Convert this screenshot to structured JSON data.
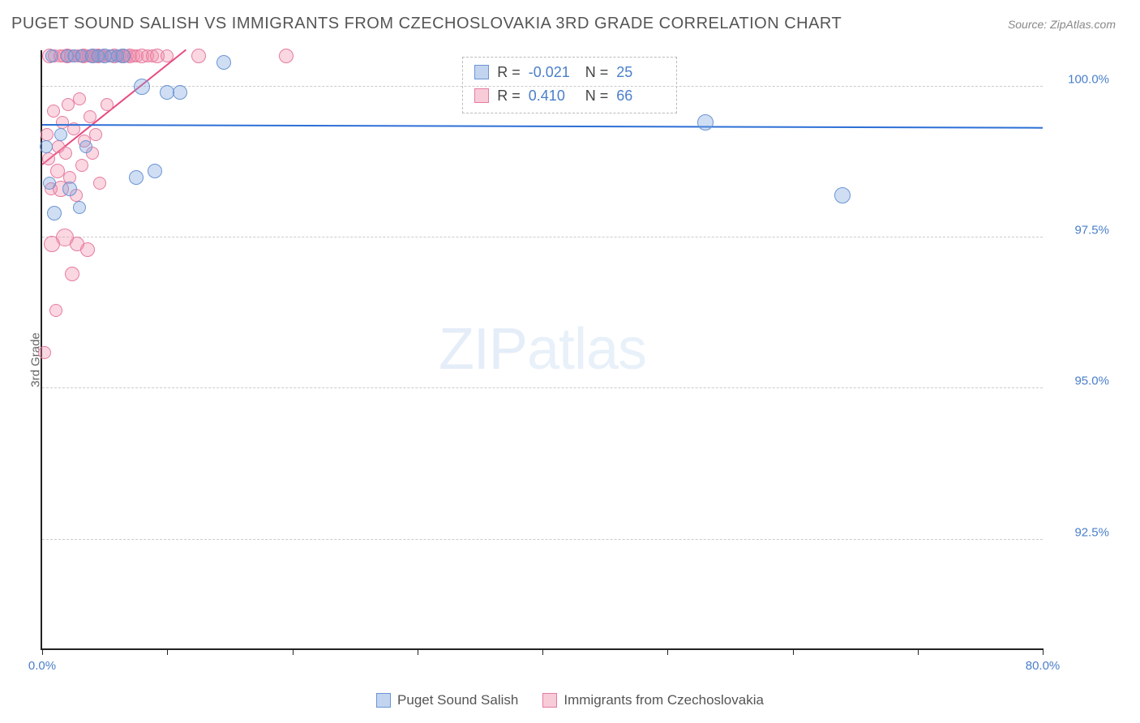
{
  "title": "PUGET SOUND SALISH VS IMMIGRANTS FROM CZECHOSLOVAKIA 3RD GRADE CORRELATION CHART",
  "source_label": "Source: ZipAtlas.com",
  "watermark": {
    "strong": "ZIP",
    "light": "atlas"
  },
  "ylabel": "3rd Grade",
  "chart": {
    "type": "scatter",
    "xlim": [
      0,
      80
    ],
    "ylim": [
      90.7,
      100.6
    ],
    "x_ticks": [
      0,
      10,
      20,
      30,
      40,
      50,
      60,
      70,
      80
    ],
    "x_tick_labels": {
      "0": "0.0%",
      "80": "80.0%"
    },
    "y_grid": [
      92.5,
      95.0,
      97.5,
      100.0
    ],
    "y_tick_labels": [
      "92.5%",
      "95.0%",
      "97.5%",
      "100.0%"
    ],
    "grid_color": "#cccccc",
    "axis_color": "#222222",
    "background": "#ffffff",
    "tick_label_color": "#4a7fc9"
  },
  "series": [
    {
      "name": "Puget Sound Salish",
      "fill": "rgba(120,160,220,0.35)",
      "stroke": "#6a95d4",
      "reg_color": "#2d6fd6",
      "R": "-0.021",
      "N": "25",
      "regression": {
        "x1": 0,
        "y1": 99.35,
        "x2": 80,
        "y2": 99.3
      },
      "points": [
        {
          "x": 0.3,
          "y": 99.0,
          "r": 8
        },
        {
          "x": 0.6,
          "y": 98.4,
          "r": 8
        },
        {
          "x": 0.8,
          "y": 100.5,
          "r": 8
        },
        {
          "x": 1.0,
          "y": 97.9,
          "r": 9
        },
        {
          "x": 1.5,
          "y": 99.2,
          "r": 8
        },
        {
          "x": 2.0,
          "y": 100.5,
          "r": 8
        },
        {
          "x": 2.2,
          "y": 98.3,
          "r": 9
        },
        {
          "x": 2.5,
          "y": 100.5,
          "r": 8
        },
        {
          "x": 3.0,
          "y": 98.0,
          "r": 8
        },
        {
          "x": 3.2,
          "y": 100.5,
          "r": 8
        },
        {
          "x": 3.5,
          "y": 99.0,
          "r": 8
        },
        {
          "x": 4.0,
          "y": 100.5,
          "r": 9
        },
        {
          "x": 4.5,
          "y": 100.5,
          "r": 8
        },
        {
          "x": 5.0,
          "y": 100.5,
          "r": 9
        },
        {
          "x": 5.5,
          "y": 100.5,
          "r": 8
        },
        {
          "x": 6.0,
          "y": 100.5,
          "r": 8
        },
        {
          "x": 6.5,
          "y": 100.5,
          "r": 9
        },
        {
          "x": 7.5,
          "y": 98.5,
          "r": 9
        },
        {
          "x": 8.0,
          "y": 100.0,
          "r": 10
        },
        {
          "x": 9.0,
          "y": 98.6,
          "r": 9
        },
        {
          "x": 10.0,
          "y": 99.9,
          "r": 9
        },
        {
          "x": 11.0,
          "y": 99.9,
          "r": 9
        },
        {
          "x": 14.5,
          "y": 100.4,
          "r": 9
        },
        {
          "x": 53.0,
          "y": 99.4,
          "r": 10
        },
        {
          "x": 64.0,
          "y": 98.2,
          "r": 10
        }
      ]
    },
    {
      "name": "Immigrants from Czechoslovakia",
      "fill": "rgba(240,140,170,0.35)",
      "stroke": "#e67ba0",
      "reg_color": "#e84a7f",
      "R": "0.410",
      "N": "66",
      "regression": {
        "x1": 0,
        "y1": 98.7,
        "x2": 11.5,
        "y2": 100.6
      },
      "points": [
        {
          "x": 0.2,
          "y": 95.6,
          "r": 8
        },
        {
          "x": 0.4,
          "y": 99.2,
          "r": 8
        },
        {
          "x": 0.5,
          "y": 98.8,
          "r": 8
        },
        {
          "x": 0.6,
          "y": 100.5,
          "r": 9
        },
        {
          "x": 0.7,
          "y": 98.3,
          "r": 8
        },
        {
          "x": 0.8,
          "y": 97.4,
          "r": 10
        },
        {
          "x": 0.9,
          "y": 99.6,
          "r": 8
        },
        {
          "x": 1.0,
          "y": 100.5,
          "r": 8
        },
        {
          "x": 1.1,
          "y": 96.3,
          "r": 8
        },
        {
          "x": 1.2,
          "y": 98.6,
          "r": 9
        },
        {
          "x": 1.3,
          "y": 99.0,
          "r": 8
        },
        {
          "x": 1.4,
          "y": 100.5,
          "r": 8
        },
        {
          "x": 1.5,
          "y": 98.3,
          "r": 10
        },
        {
          "x": 1.6,
          "y": 99.4,
          "r": 8
        },
        {
          "x": 1.7,
          "y": 100.5,
          "r": 8
        },
        {
          "x": 1.8,
          "y": 97.5,
          "r": 11
        },
        {
          "x": 1.9,
          "y": 98.9,
          "r": 8
        },
        {
          "x": 2.0,
          "y": 100.5,
          "r": 9
        },
        {
          "x": 2.1,
          "y": 99.7,
          "r": 8
        },
        {
          "x": 2.2,
          "y": 98.5,
          "r": 8
        },
        {
          "x": 2.3,
          "y": 100.5,
          "r": 8
        },
        {
          "x": 2.4,
          "y": 96.9,
          "r": 9
        },
        {
          "x": 2.5,
          "y": 99.3,
          "r": 8
        },
        {
          "x": 2.6,
          "y": 100.5,
          "r": 8
        },
        {
          "x": 2.7,
          "y": 98.2,
          "r": 8
        },
        {
          "x": 2.8,
          "y": 97.4,
          "r": 9
        },
        {
          "x": 2.9,
          "y": 100.5,
          "r": 8
        },
        {
          "x": 3.0,
          "y": 99.8,
          "r": 8
        },
        {
          "x": 3.1,
          "y": 100.5,
          "r": 8
        },
        {
          "x": 3.2,
          "y": 98.7,
          "r": 8
        },
        {
          "x": 3.3,
          "y": 100.5,
          "r": 9
        },
        {
          "x": 3.4,
          "y": 99.1,
          "r": 8
        },
        {
          "x": 3.5,
          "y": 100.5,
          "r": 8
        },
        {
          "x": 3.6,
          "y": 97.3,
          "r": 9
        },
        {
          "x": 3.7,
          "y": 100.5,
          "r": 8
        },
        {
          "x": 3.8,
          "y": 99.5,
          "r": 8
        },
        {
          "x": 3.9,
          "y": 100.5,
          "r": 8
        },
        {
          "x": 4.0,
          "y": 98.9,
          "r": 8
        },
        {
          "x": 4.1,
          "y": 100.5,
          "r": 9
        },
        {
          "x": 4.2,
          "y": 100.5,
          "r": 8
        },
        {
          "x": 4.3,
          "y": 99.2,
          "r": 8
        },
        {
          "x": 4.4,
          "y": 100.5,
          "r": 8
        },
        {
          "x": 4.5,
          "y": 100.5,
          "r": 9
        },
        {
          "x": 4.6,
          "y": 98.4,
          "r": 8
        },
        {
          "x": 4.7,
          "y": 100.5,
          "r": 8
        },
        {
          "x": 4.8,
          "y": 100.5,
          "r": 8
        },
        {
          "x": 5.0,
          "y": 100.5,
          "r": 9
        },
        {
          "x": 5.2,
          "y": 99.7,
          "r": 8
        },
        {
          "x": 5.4,
          "y": 100.5,
          "r": 8
        },
        {
          "x": 5.6,
          "y": 100.5,
          "r": 8
        },
        {
          "x": 5.8,
          "y": 100.5,
          "r": 9
        },
        {
          "x": 6.0,
          "y": 100.5,
          "r": 8
        },
        {
          "x": 6.2,
          "y": 100.5,
          "r": 8
        },
        {
          "x": 6.4,
          "y": 100.5,
          "r": 9
        },
        {
          "x": 6.6,
          "y": 100.5,
          "r": 8
        },
        {
          "x": 6.8,
          "y": 100.5,
          "r": 8
        },
        {
          "x": 7.0,
          "y": 100.5,
          "r": 9
        },
        {
          "x": 7.3,
          "y": 100.5,
          "r": 8
        },
        {
          "x": 7.6,
          "y": 100.5,
          "r": 8
        },
        {
          "x": 8.0,
          "y": 100.5,
          "r": 9
        },
        {
          "x": 8.4,
          "y": 100.5,
          "r": 8
        },
        {
          "x": 8.8,
          "y": 100.5,
          "r": 8
        },
        {
          "x": 9.2,
          "y": 100.5,
          "r": 9
        },
        {
          "x": 10.0,
          "y": 100.5,
          "r": 8
        },
        {
          "x": 12.5,
          "y": 100.5,
          "r": 9
        },
        {
          "x": 19.5,
          "y": 100.5,
          "r": 9
        }
      ]
    }
  ],
  "stats_box": {
    "rows": [
      {
        "swatch_fill": "rgba(120,160,220,0.45)",
        "swatch_border": "#6a95d4",
        "R_label": "R =",
        "R": "-0.021",
        "N_label": "N =",
        "N": "25"
      },
      {
        "swatch_fill": "rgba(240,140,170,0.45)",
        "swatch_border": "#e67ba0",
        "R_label": "R =",
        "R": "0.410",
        "N_label": "N =",
        "N": "66"
      }
    ]
  },
  "legend": [
    {
      "swatch_fill": "rgba(120,160,220,0.45)",
      "swatch_border": "#6a95d4",
      "label": "Puget Sound Salish"
    },
    {
      "swatch_fill": "rgba(240,140,170,0.45)",
      "swatch_border": "#e67ba0",
      "label": "Immigrants from Czechoslovakia"
    }
  ]
}
